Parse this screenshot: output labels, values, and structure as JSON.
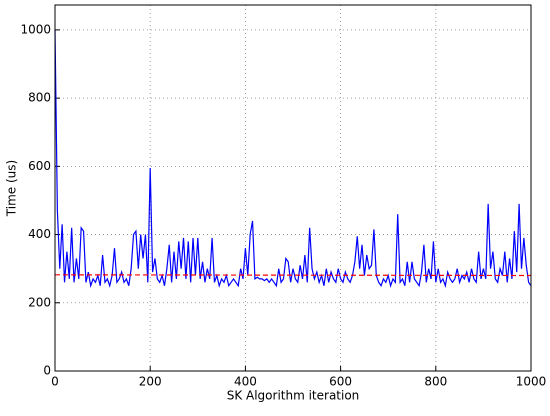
{
  "chart_data": {
    "type": "line",
    "xlabel": "SK Algorithm iteration",
    "ylabel": "Time (us)",
    "x": [
      0,
      5,
      10,
      15,
      20,
      25,
      30,
      35,
      40,
      45,
      50,
      55,
      60,
      65,
      70,
      75,
      80,
      85,
      90,
      95,
      100,
      105,
      110,
      115,
      120,
      125,
      130,
      135,
      140,
      145,
      150,
      155,
      160,
      165,
      170,
      175,
      180,
      185,
      190,
      195,
      200,
      205,
      210,
      215,
      220,
      225,
      230,
      235,
      240,
      245,
      250,
      255,
      260,
      265,
      270,
      275,
      280,
      285,
      290,
      295,
      300,
      305,
      310,
      315,
      320,
      325,
      330,
      335,
      340,
      345,
      350,
      355,
      360,
      365,
      370,
      375,
      380,
      385,
      390,
      395,
      400,
      405,
      410,
      415,
      420,
      425,
      430,
      435,
      440,
      445,
      450,
      455,
      460,
      465,
      470,
      475,
      480,
      485,
      490,
      495,
      500,
      505,
      510,
      515,
      520,
      525,
      530,
      535,
      540,
      545,
      550,
      555,
      560,
      565,
      570,
      575,
      580,
      585,
      590,
      595,
      600,
      605,
      610,
      615,
      620,
      625,
      630,
      635,
      640,
      645,
      650,
      655,
      660,
      665,
      670,
      675,
      680,
      685,
      690,
      695,
      700,
      705,
      710,
      715,
      720,
      725,
      730,
      735,
      740,
      745,
      750,
      755,
      760,
      765,
      770,
      775,
      780,
      785,
      790,
      795,
      800,
      805,
      810,
      815,
      820,
      825,
      830,
      835,
      840,
      845,
      850,
      855,
      860,
      865,
      870,
      875,
      880,
      885,
      890,
      895,
      900,
      905,
      910,
      915,
      920,
      925,
      930,
      935,
      940,
      945,
      950,
      955,
      960,
      965,
      970,
      975,
      980,
      985,
      990,
      995,
      1000
    ],
    "series": [
      {
        "color": "#0000ff",
        "style": "solid",
        "values": [
          1000,
          470,
          300,
          430,
          260,
          350,
          270,
          420,
          260,
          330,
          270,
          420,
          410,
          260,
          290,
          250,
          270,
          260,
          280,
          250,
          340,
          260,
          270,
          250,
          280,
          360,
          260,
          270,
          290,
          260,
          270,
          250,
          300,
          400,
          410,
          300,
          400,
          330,
          400,
          260,
          595,
          290,
          330,
          270,
          260,
          280,
          250,
          300,
          370,
          260,
          350,
          270,
          380,
          300,
          390,
          270,
          380,
          260,
          390,
          280,
          390,
          270,
          320,
          260,
          300,
          270,
          390,
          260,
          280,
          250,
          270,
          260,
          280,
          250,
          260,
          270,
          260,
          250,
          300,
          270,
          360,
          280,
          400,
          440,
          270,
          275,
          270,
          270,
          265,
          270,
          260,
          270,
          260,
          250,
          300,
          260,
          270,
          330,
          320,
          260,
          300,
          270,
          260,
          310,
          270,
          340,
          260,
          420,
          300,
          270,
          290,
          260,
          280,
          250,
          300,
          260,
          290,
          270,
          260,
          300,
          270,
          260,
          290,
          270,
          260,
          280,
          320,
          395,
          300,
          370,
          280,
          340,
          300,
          310,
          415,
          280,
          260,
          250,
          270,
          260,
          280,
          250,
          270,
          260,
          460,
          260,
          270,
          250,
          320,
          260,
          320,
          270,
          260,
          250,
          290,
          370,
          260,
          300,
          270,
          380,
          260,
          300,
          260,
          270,
          250,
          290,
          270,
          260,
          270,
          300,
          260,
          280,
          270,
          290,
          260,
          300,
          270,
          260,
          350,
          270,
          300,
          270,
          490,
          300,
          350,
          270,
          260,
          300,
          280,
          350,
          260,
          330,
          270,
          410,
          290,
          490,
          300,
          390,
          310,
          260,
          250
        ]
      },
      {
        "color": "#ff0000",
        "style": "dashed",
        "x": [
          0,
          1000
        ],
        "values": [
          282,
          280
        ]
      }
    ],
    "xlim": [
      0,
      1000
    ],
    "ylim": [
      0,
      1073
    ],
    "xticks": [
      0,
      200,
      400,
      600,
      800,
      1000
    ],
    "yticks": [
      0,
      200,
      400,
      600,
      800,
      1000
    ],
    "grid": true
  }
}
